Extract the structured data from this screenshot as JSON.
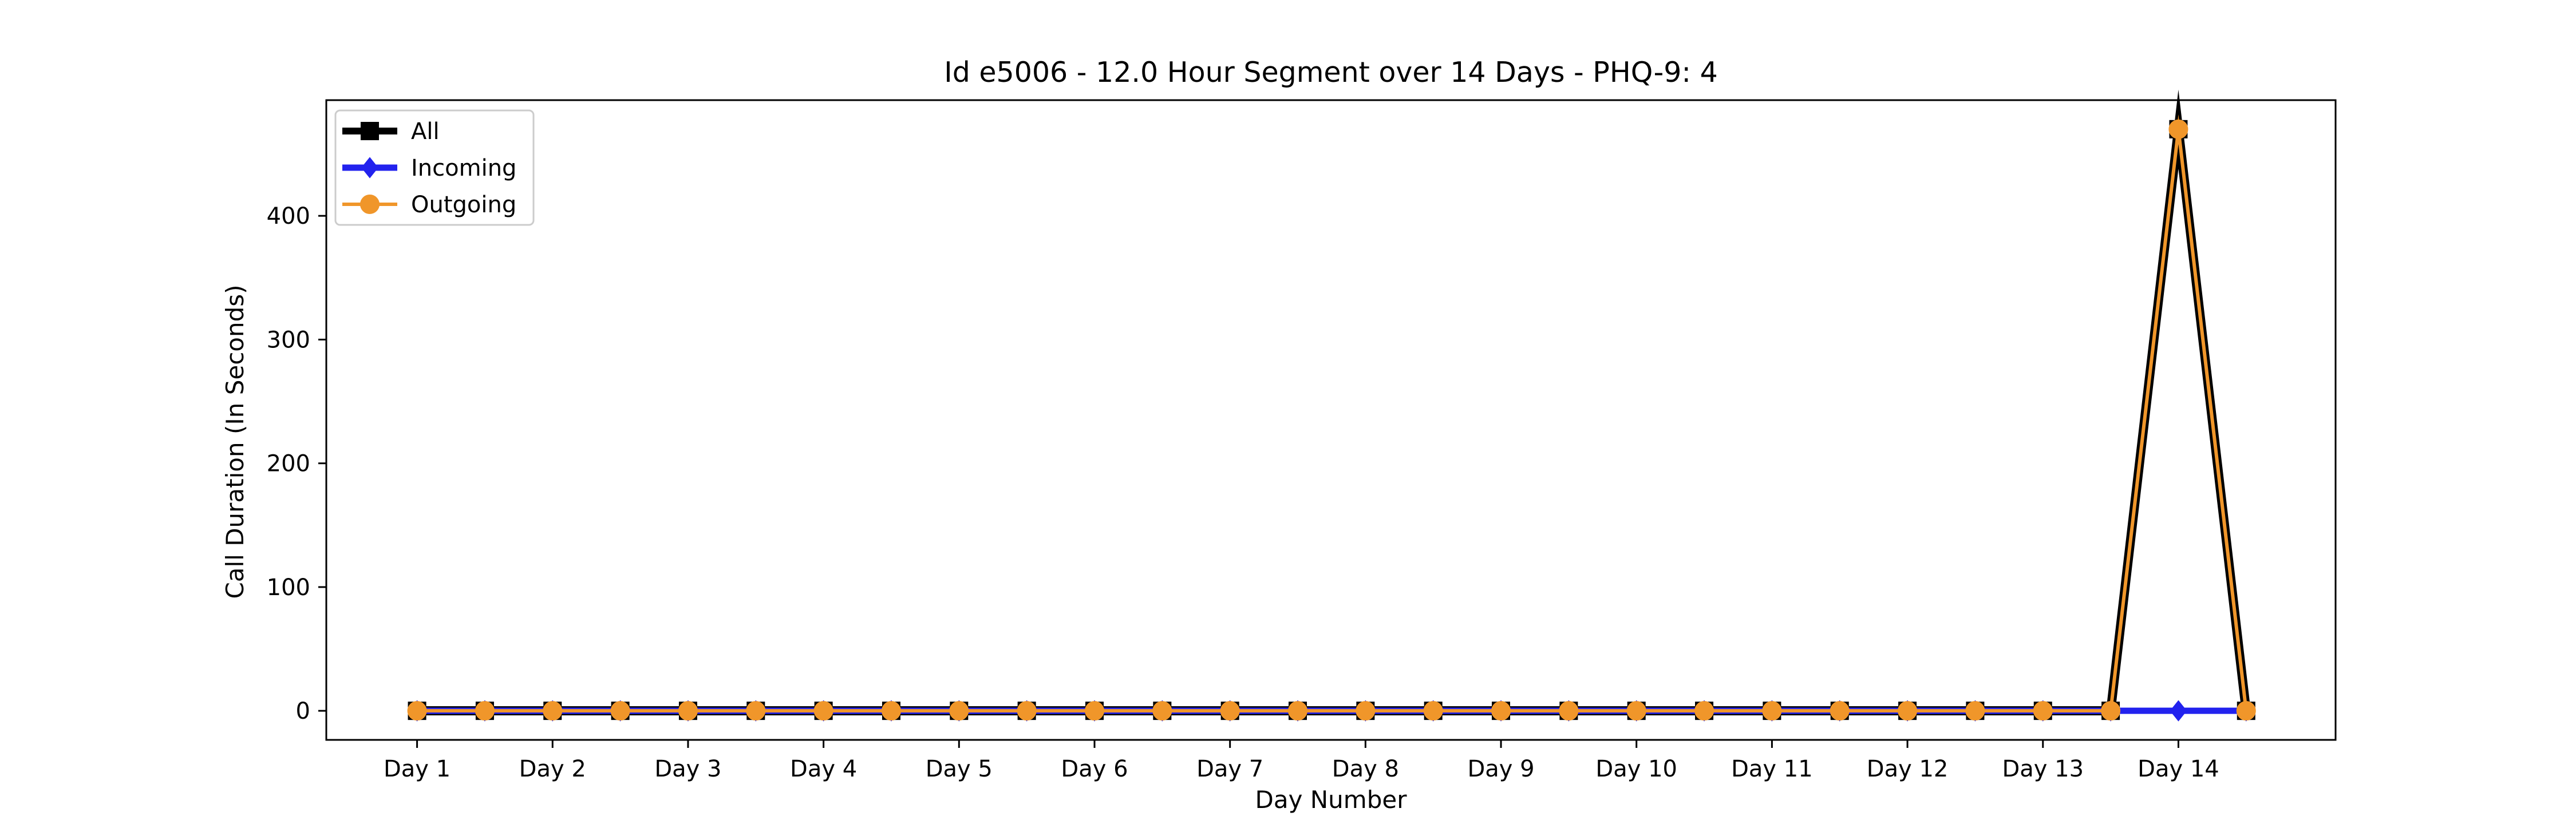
{
  "chart_data": {
    "type": "line",
    "title": "Id e5006 - 12.0 Hour Segment over 14 Days - PHQ-9: 4",
    "xlabel": "Day Number",
    "ylabel": "Call Duration (In Seconds)",
    "x": [
      1,
      1.5,
      2,
      2.5,
      3,
      3.5,
      4,
      4.5,
      5,
      5.5,
      6,
      6.5,
      7,
      7.5,
      8,
      8.5,
      9,
      9.5,
      10,
      10.5,
      11,
      11.5,
      12,
      12.5,
      13,
      13.5,
      14,
      14.5
    ],
    "xticks": [
      {
        "value": 1,
        "label": "Day 1"
      },
      {
        "value": 2,
        "label": "Day 2"
      },
      {
        "value": 3,
        "label": "Day 3"
      },
      {
        "value": 4,
        "label": "Day 4"
      },
      {
        "value": 5,
        "label": "Day 5"
      },
      {
        "value": 6,
        "label": "Day 6"
      },
      {
        "value": 7,
        "label": "Day 7"
      },
      {
        "value": 8,
        "label": "Day 8"
      },
      {
        "value": 9,
        "label": "Day 9"
      },
      {
        "value": 10,
        "label": "Day 10"
      },
      {
        "value": 11,
        "label": "Day 11"
      },
      {
        "value": 12,
        "label": "Day 12"
      },
      {
        "value": 13,
        "label": "Day 13"
      },
      {
        "value": 14,
        "label": "Day 14"
      }
    ],
    "yticks": [
      0,
      100,
      200,
      300,
      400
    ],
    "xlim": [
      0.33,
      15.16
    ],
    "ylim": [
      -23.5,
      493.5
    ],
    "grid": false,
    "legend_position": "upper-left",
    "series": [
      {
        "name": "All",
        "color": "#000000",
        "marker": "square",
        "values": [
          0,
          0,
          0,
          0,
          0,
          0,
          0,
          0,
          0,
          0,
          0,
          0,
          0,
          0,
          0,
          0,
          0,
          0,
          0,
          0,
          0,
          0,
          0,
          0,
          0,
          0,
          470,
          0
        ]
      },
      {
        "name": "Incoming",
        "color": "#2222ee",
        "marker": "diamond",
        "values": [
          0,
          0,
          0,
          0,
          0,
          0,
          0,
          0,
          0,
          0,
          0,
          0,
          0,
          0,
          0,
          0,
          0,
          0,
          0,
          0,
          0,
          0,
          0,
          0,
          0,
          0,
          0,
          0
        ]
      },
      {
        "name": "Outgoing",
        "color": "#f0962a",
        "marker": "circle",
        "values": [
          0,
          0,
          0,
          0,
          0,
          0,
          0,
          0,
          0,
          0,
          0,
          0,
          0,
          0,
          0,
          0,
          0,
          0,
          0,
          0,
          0,
          0,
          0,
          0,
          0,
          0,
          470,
          0
        ]
      }
    ]
  }
}
